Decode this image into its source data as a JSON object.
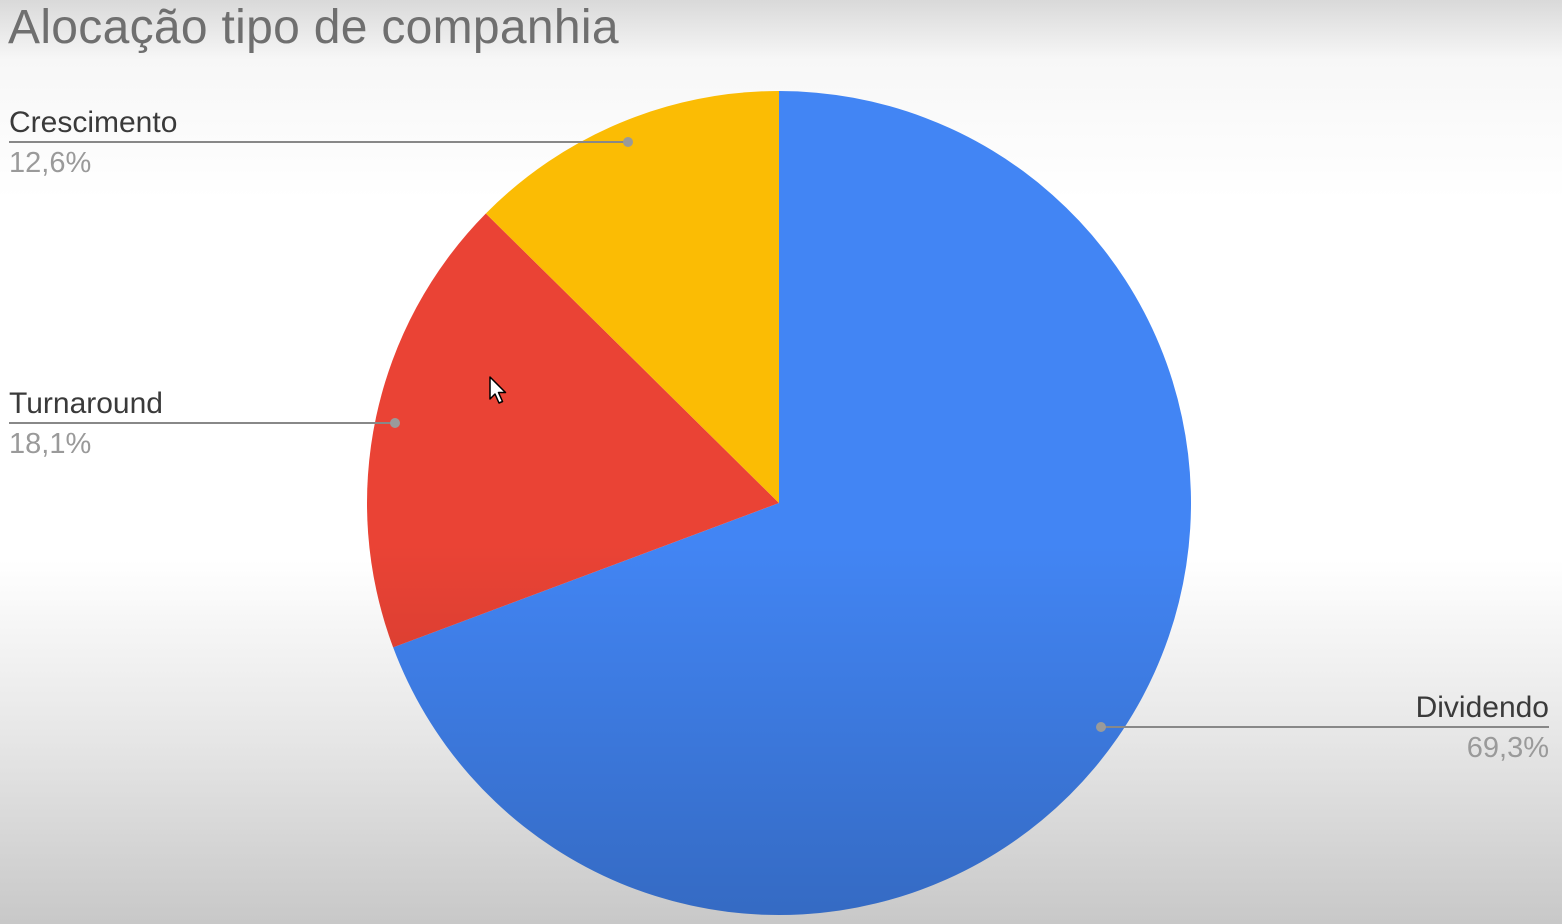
{
  "chart_data": {
    "type": "pie",
    "title": "Alocação tipo de companhia",
    "categories": [
      "Dividendo",
      "Turnaround",
      "Crescimento"
    ],
    "values": [
      69.3,
      18.1,
      12.6
    ],
    "value_labels": [
      "69,3%",
      "18,1%",
      "12,6%"
    ],
    "colors": [
      "#4285f4",
      "#ea4335",
      "#fbbc04"
    ],
    "start_angle": "12 o'clock",
    "direction": "clockwise",
    "legend": "labels with leader lines"
  },
  "icons": {
    "cursor": "mouse-pointer-icon"
  }
}
